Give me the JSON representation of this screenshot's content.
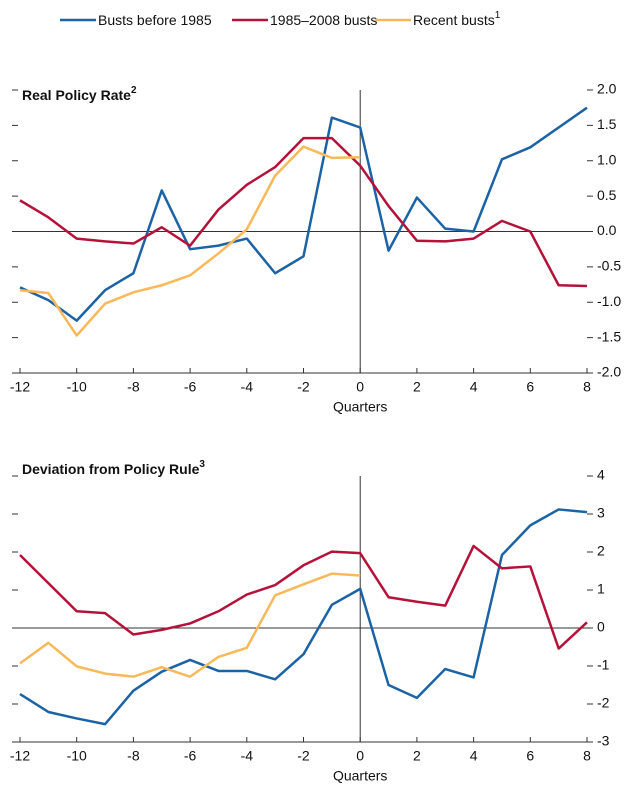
{
  "chart_data": [
    {
      "type": "line",
      "title": "Real Policy Rate",
      "title_note": "2",
      "x": [
        -12,
        -11,
        -10,
        -9,
        -8,
        -7,
        -6,
        -5,
        -4,
        -3,
        -2,
        -1,
        0,
        1,
        2,
        3,
        4,
        5,
        6,
        7,
        8
      ],
      "xlim": [
        -12,
        8
      ],
      "xticks": [
        -12,
        -10,
        -8,
        -6,
        -4,
        -2,
        0,
        2,
        4,
        6,
        8
      ],
      "xlabel": "Quarters",
      "ylim": [
        -2,
        2
      ],
      "yticks": [
        {
          "value": -2,
          "label": "-2.0"
        },
        -1.5,
        {
          "value": -1,
          "label": "-1.0"
        },
        -0.5,
        {
          "value": 0,
          "label": "0.0"
        },
        0.5,
        {
          "value": 1,
          "label": "1.0"
        },
        1.5,
        {
          "value": 2,
          "label": "2.0"
        }
      ],
      "series": [
        {
          "name": "Busts before 1985",
          "color": "#1b63a5",
          "values": [
            -0.79,
            -0.97,
            -1.26,
            -0.83,
            -0.59,
            0.58,
            -0.25,
            -0.2,
            -0.1,
            -0.59,
            -0.35,
            1.61,
            1.47,
            -0.27,
            0.48,
            0.04,
            0.0,
            1.02,
            1.19,
            1.47,
            1.75
          ]
        },
        {
          "name": "1985–2008 busts",
          "color": "#b5123a",
          "values": [
            0.44,
            0.2,
            -0.1,
            -0.14,
            -0.17,
            0.06,
            -0.2,
            0.31,
            0.66,
            0.91,
            1.32,
            1.32,
            0.93,
            0.36,
            -0.13,
            -0.14,
            -0.1,
            0.15,
            0.0,
            -0.76,
            -0.77
          ]
        },
        {
          "name": "Recent busts",
          "name_note": "1",
          "color": "#f9b95a",
          "values": [
            -0.83,
            -0.87,
            -1.47,
            -1.02,
            -0.86,
            -0.76,
            -0.62,
            -0.31,
            0.03,
            0.79,
            1.2,
            1.04,
            1.05,
            null,
            null,
            null,
            null,
            null,
            null,
            null,
            null
          ]
        }
      ]
    },
    {
      "type": "line",
      "title": "Deviation from Policy Rule",
      "title_note": "3",
      "x": [
        -12,
        -11,
        -10,
        -9,
        -8,
        -7,
        -6,
        -5,
        -4,
        -3,
        -2,
        -1,
        0,
        1,
        2,
        3,
        4,
        5,
        6,
        7,
        8
      ],
      "xlim": [
        -12,
        8
      ],
      "xticks": [
        -12,
        -10,
        -8,
        -6,
        -4,
        -2,
        0,
        2,
        4,
        6,
        8
      ],
      "xlabel": "Quarters",
      "ylim": [
        -3,
        4
      ],
      "yticks": [
        -3,
        -2,
        -1,
        0,
        1,
        2,
        3,
        4
      ],
      "series": [
        {
          "color": "#1b63a5",
          "values": [
            -1.74,
            -2.21,
            -2.38,
            -2.53,
            -1.65,
            -1.15,
            -0.84,
            -1.13,
            -1.13,
            -1.35,
            -0.69,
            0.61,
            1.03,
            -1.5,
            -1.84,
            -1.08,
            -1.3,
            1.92,
            2.7,
            3.12,
            3.05
          ]
        },
        {
          "color": "#b5123a",
          "values": [
            1.92,
            1.18,
            0.44,
            0.39,
            -0.17,
            -0.05,
            0.12,
            0.44,
            0.88,
            1.13,
            1.65,
            2.01,
            1.97,
            0.81,
            0.69,
            0.59,
            2.16,
            1.57,
            1.62,
            -0.54,
            0.15
          ]
        },
        {
          "color": "#f9b95a",
          "values": [
            -0.93,
            -0.39,
            -1.01,
            -1.2,
            -1.28,
            -1.03,
            -1.28,
            -0.76,
            -0.52,
            0.86,
            1.15,
            1.43,
            1.38,
            null,
            null,
            null,
            null,
            null,
            null,
            null,
            null
          ]
        }
      ]
    }
  ]
}
